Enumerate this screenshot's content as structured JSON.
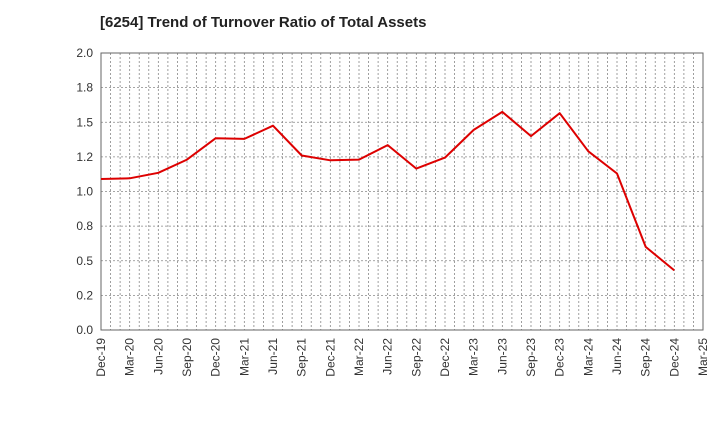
{
  "chart_data": {
    "type": "line",
    "title": "[6254]  Trend of Turnover Ratio of Total Assets",
    "xlabel": "",
    "ylabel": "",
    "ylim": [
      0.0,
      2.0
    ],
    "y_ticks": [
      "0.0",
      "0.2",
      "0.5",
      "0.8",
      "1.0",
      "1.2",
      "1.5",
      "1.8",
      "2.0"
    ],
    "x_ticks": [
      "Dec-19",
      "Mar-20",
      "Jun-20",
      "Sep-20",
      "Dec-20",
      "Mar-21",
      "Jun-21",
      "Sep-21",
      "Dec-21",
      "Mar-22",
      "Jun-22",
      "Sep-22",
      "Dec-22",
      "Mar-23",
      "Jun-23",
      "Sep-23",
      "Dec-23",
      "Mar-24",
      "Jun-24",
      "Sep-24",
      "Dec-24",
      "Mar-25"
    ],
    "grid": true,
    "series": [
      {
        "color": "#dd0000",
        "x": [
          "Dec-19",
          "Mar-20",
          "Jun-20",
          "Sep-20",
          "Dec-20",
          "Mar-21",
          "Jun-21",
          "Sep-21",
          "Dec-21",
          "Mar-22",
          "Jun-22",
          "Sep-22",
          "Dec-22",
          "Mar-23",
          "Jun-23",
          "Sep-23",
          "Dec-23",
          "Mar-24",
          "Jun-24",
          "Sep-24",
          "Dec-24"
        ],
        "values": [
          1.09,
          1.095,
          1.135,
          1.23,
          1.385,
          1.38,
          1.475,
          1.26,
          1.225,
          1.23,
          1.335,
          1.165,
          1.245,
          1.445,
          1.575,
          1.4,
          1.565,
          1.29,
          1.13,
          0.6,
          0.43
        ]
      }
    ]
  }
}
